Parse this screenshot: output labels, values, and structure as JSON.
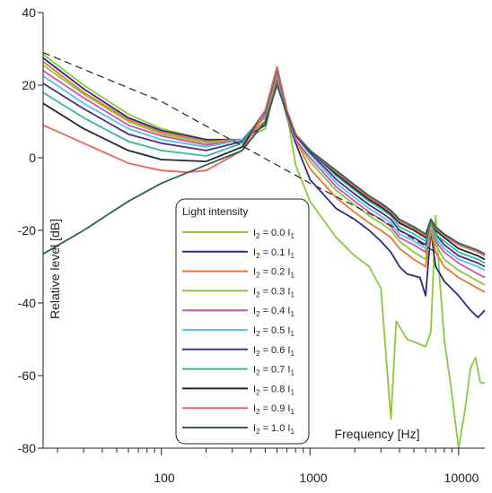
{
  "chart_data": {
    "type": "line",
    "xlabel": "Frequency [Hz]",
    "ylabel": "Relative level [dB]",
    "xscale": "log",
    "xlim": [
      16,
      15000
    ],
    "ylim": [
      -80,
      40
    ],
    "yticks": [
      "40",
      "20",
      "0",
      "-20",
      "-40",
      "-60",
      "-80"
    ],
    "xticks": [
      "100",
      "1000",
      "10000"
    ],
    "legend": {
      "title": "Light intensity",
      "placement": "center",
      "entries": [
        {
          "prefix": "I",
          "sub1": "2",
          "mid": " = 0.0 I",
          "sub2": "1"
        },
        {
          "prefix": "I",
          "sub1": "2",
          "mid": " = 0.1 I",
          "sub2": "1"
        },
        {
          "prefix": "I",
          "sub1": "2",
          "mid": " = 0.2 I",
          "sub2": "1"
        },
        {
          "prefix": "I",
          "sub1": "2",
          "mid": " = 0.3 I",
          "sub2": "1"
        },
        {
          "prefix": "I",
          "sub1": "2",
          "mid": " = 0.4 I",
          "sub2": "1"
        },
        {
          "prefix": "I",
          "sub1": "2",
          "mid": " = 0.5 I",
          "sub2": "1"
        },
        {
          "prefix": "I",
          "sub1": "2",
          "mid": " = 0.6 I",
          "sub2": "1"
        },
        {
          "prefix": "I",
          "sub1": "2",
          "mid": " = 0.7 I",
          "sub2": "1"
        },
        {
          "prefix": "I",
          "sub1": "2",
          "mid": " = 0.8 I",
          "sub2": "1"
        },
        {
          "prefix": "I",
          "sub1": "2",
          "mid": " = 0.9 I",
          "sub2": "1"
        },
        {
          "prefix": "I",
          "sub1": "2",
          "mid": " = 1.0 I",
          "sub2": "1"
        }
      ]
    },
    "series": [
      {
        "color": "#8dc63f",
        "points": [
          [
            16,
            28.5
          ],
          [
            30,
            20
          ],
          [
            60,
            12
          ],
          [
            100,
            8
          ],
          [
            200,
            5
          ],
          [
            350,
            4.8
          ],
          [
            500,
            8
          ],
          [
            600,
            21
          ],
          [
            700,
            12
          ],
          [
            800,
            -2
          ],
          [
            1000,
            -12
          ],
          [
            1500,
            -22
          ],
          [
            2000,
            -27
          ],
          [
            2500,
            -30
          ],
          [
            3000,
            -36
          ],
          [
            3500,
            -72
          ],
          [
            3800,
            -45
          ],
          [
            4500,
            -50
          ],
          [
            6000,
            -52
          ],
          [
            6500,
            -48
          ],
          [
            7000,
            -16
          ],
          [
            7500,
            -35
          ],
          [
            8000,
            -50
          ],
          [
            9000,
            -65
          ],
          [
            10000,
            -80
          ],
          [
            11000,
            -70
          ],
          [
            12000,
            -58
          ],
          [
            13000,
            -55
          ],
          [
            14000,
            -62
          ],
          [
            15000,
            -62
          ]
        ]
      },
      {
        "color": "#2e2a7e",
        "points": [
          [
            16,
            27.5
          ],
          [
            30,
            19
          ],
          [
            60,
            11
          ],
          [
            100,
            7.5
          ],
          [
            200,
            5
          ],
          [
            350,
            5
          ],
          [
            500,
            9
          ],
          [
            600,
            22
          ],
          [
            700,
            11
          ],
          [
            800,
            4
          ],
          [
            1000,
            -6
          ],
          [
            1500,
            -14
          ],
          [
            2000,
            -17
          ],
          [
            2500,
            -20
          ],
          [
            3000,
            -23
          ],
          [
            3500,
            -26
          ],
          [
            4000,
            -30
          ],
          [
            4500,
            -32
          ],
          [
            5500,
            -33
          ],
          [
            6000,
            -38
          ],
          [
            6500,
            -20
          ],
          [
            7000,
            -30
          ],
          [
            8000,
            -34
          ],
          [
            10000,
            -38
          ],
          [
            12000,
            -42
          ],
          [
            13500,
            -44
          ],
          [
            15000,
            -42
          ]
        ]
      },
      {
        "color": "#e8772e",
        "points": [
          [
            16,
            26.5
          ],
          [
            30,
            18
          ],
          [
            60,
            10.5
          ],
          [
            100,
            7
          ],
          [
            200,
            4.5
          ],
          [
            350,
            5
          ],
          [
            500,
            10
          ],
          [
            600,
            22.5
          ],
          [
            700,
            11
          ],
          [
            800,
            5
          ],
          [
            1000,
            -3
          ],
          [
            1500,
            -11
          ],
          [
            2000,
            -15
          ],
          [
            2500,
            -18
          ],
          [
            3000,
            -20
          ],
          [
            3500,
            -22
          ],
          [
            4000,
            -25
          ],
          [
            5000,
            -28
          ],
          [
            6000,
            -30
          ],
          [
            6500,
            -20
          ],
          [
            7000,
            -26
          ],
          [
            8000,
            -30
          ],
          [
            10000,
            -33
          ],
          [
            13500,
            -36
          ],
          [
            15000,
            -37
          ]
        ]
      },
      {
        "color": "#8dc63f",
        "points": [
          [
            16,
            25.5
          ],
          [
            30,
            17.5
          ],
          [
            60,
            10
          ],
          [
            100,
            6.5
          ],
          [
            200,
            4
          ],
          [
            350,
            5
          ],
          [
            500,
            11
          ],
          [
            600,
            23
          ],
          [
            700,
            11
          ],
          [
            800,
            5
          ],
          [
            1000,
            -1
          ],
          [
            1500,
            -9
          ],
          [
            2000,
            -13
          ],
          [
            2500,
            -16
          ],
          [
            3000,
            -18
          ],
          [
            3500,
            -20
          ],
          [
            4000,
            -23
          ],
          [
            5000,
            -26
          ],
          [
            6000,
            -28
          ],
          [
            6500,
            -18
          ],
          [
            7000,
            -24
          ],
          [
            8000,
            -28
          ],
          [
            10000,
            -31
          ],
          [
            13500,
            -34
          ],
          [
            15000,
            -35
          ]
        ]
      },
      {
        "color": "#d44fb0",
        "points": [
          [
            16,
            24
          ],
          [
            30,
            16.5
          ],
          [
            60,
            9
          ],
          [
            100,
            6
          ],
          [
            200,
            3.5
          ],
          [
            350,
            5
          ],
          [
            500,
            11.5
          ],
          [
            600,
            23.5
          ],
          [
            700,
            11.5
          ],
          [
            800,
            5
          ],
          [
            1000,
            0
          ],
          [
            1500,
            -8
          ],
          [
            2000,
            -12
          ],
          [
            2500,
            -15
          ],
          [
            3000,
            -17
          ],
          [
            3500,
            -19
          ],
          [
            4000,
            -22
          ],
          [
            5000,
            -24
          ],
          [
            6000,
            -26
          ],
          [
            6500,
            -17
          ],
          [
            7000,
            -23
          ],
          [
            8000,
            -26
          ],
          [
            10000,
            -29
          ],
          [
            13500,
            -32
          ],
          [
            15000,
            -33
          ]
        ]
      },
      {
        "color": "#55c0e8",
        "points": [
          [
            16,
            22.5
          ],
          [
            30,
            15
          ],
          [
            60,
            8
          ],
          [
            100,
            5
          ],
          [
            200,
            3
          ],
          [
            350,
            5
          ],
          [
            500,
            12
          ],
          [
            600,
            24
          ],
          [
            700,
            12
          ],
          [
            800,
            6
          ],
          [
            1000,
            1
          ],
          [
            1500,
            -7
          ],
          [
            2000,
            -11
          ],
          [
            2500,
            -14
          ],
          [
            3000,
            -16
          ],
          [
            3500,
            -18
          ],
          [
            4000,
            -21
          ],
          [
            5000,
            -23
          ],
          [
            6000,
            -25
          ],
          [
            6500,
            -17
          ],
          [
            7000,
            -22
          ],
          [
            8000,
            -25
          ],
          [
            10000,
            -28
          ],
          [
            13500,
            -30
          ],
          [
            15000,
            -31
          ]
        ]
      },
      {
        "color": "#4b2e83",
        "points": [
          [
            16,
            20.5
          ],
          [
            30,
            13.5
          ],
          [
            60,
            6.5
          ],
          [
            100,
            4
          ],
          [
            200,
            2
          ],
          [
            350,
            4.5
          ],
          [
            500,
            12.5
          ],
          [
            600,
            24.5
          ],
          [
            700,
            12.5
          ],
          [
            800,
            6
          ],
          [
            1000,
            1.5
          ],
          [
            1500,
            -6
          ],
          [
            2000,
            -10
          ],
          [
            2500,
            -13
          ],
          [
            3000,
            -15
          ],
          [
            3500,
            -17
          ],
          [
            4000,
            -20
          ],
          [
            5000,
            -22
          ],
          [
            6000,
            -24
          ],
          [
            6500,
            -17
          ],
          [
            7000,
            -21
          ],
          [
            8000,
            -24
          ],
          [
            10000,
            -27
          ],
          [
            13500,
            -29
          ],
          [
            15000,
            -30
          ]
        ]
      },
      {
        "color": "#3ab7a0",
        "points": [
          [
            16,
            18
          ],
          [
            30,
            11
          ],
          [
            60,
            4.5
          ],
          [
            100,
            2
          ],
          [
            200,
            0.5
          ],
          [
            350,
            4
          ],
          [
            500,
            13
          ],
          [
            600,
            25
          ],
          [
            700,
            13
          ],
          [
            800,
            6.5
          ],
          [
            1000,
            2
          ],
          [
            1500,
            -5
          ],
          [
            2000,
            -9
          ],
          [
            2500,
            -12
          ],
          [
            3000,
            -14
          ],
          [
            3500,
            -16
          ],
          [
            4000,
            -19
          ],
          [
            5000,
            -21
          ],
          [
            6000,
            -23
          ],
          [
            6500,
            -17
          ],
          [
            7000,
            -21
          ],
          [
            8000,
            -23
          ],
          [
            10000,
            -26
          ],
          [
            13500,
            -28
          ],
          [
            15000,
            -29
          ]
        ]
      },
      {
        "color": "#1f2a2e",
        "points": [
          [
            16,
            15
          ],
          [
            30,
            8
          ],
          [
            60,
            2
          ],
          [
            100,
            -0.5
          ],
          [
            200,
            -1
          ],
          [
            350,
            3
          ],
          [
            500,
            13
          ],
          [
            600,
            25
          ],
          [
            700,
            13
          ],
          [
            800,
            6.5
          ],
          [
            1000,
            2
          ],
          [
            1500,
            -4.5
          ],
          [
            2000,
            -8.5
          ],
          [
            2500,
            -11.5
          ],
          [
            3000,
            -13.5
          ],
          [
            3500,
            -15.5
          ],
          [
            4000,
            -18
          ],
          [
            5000,
            -20
          ],
          [
            6000,
            -22
          ],
          [
            6500,
            -17
          ],
          [
            7000,
            -20
          ],
          [
            8000,
            -22
          ],
          [
            10000,
            -25
          ],
          [
            13500,
            -27
          ],
          [
            15000,
            -28
          ]
        ]
      },
      {
        "color": "#e8655a",
        "points": [
          [
            16,
            9
          ],
          [
            30,
            4
          ],
          [
            60,
            -1.5
          ],
          [
            100,
            -3.5
          ],
          [
            150,
            -4
          ],
          [
            200,
            -3.5
          ],
          [
            350,
            2
          ],
          [
            500,
            13
          ],
          [
            600,
            25
          ],
          [
            700,
            13
          ],
          [
            800,
            6.5
          ],
          [
            1000,
            2
          ],
          [
            1500,
            -4
          ],
          [
            2000,
            -8
          ],
          [
            2500,
            -11
          ],
          [
            3000,
            -13
          ],
          [
            3500,
            -15
          ],
          [
            4000,
            -17.5
          ],
          [
            5000,
            -19.5
          ],
          [
            6000,
            -21.5
          ],
          [
            6500,
            -17
          ],
          [
            7000,
            -19.5
          ],
          [
            8000,
            -21.5
          ],
          [
            10000,
            -24
          ],
          [
            13500,
            -26
          ],
          [
            15000,
            -27
          ]
        ]
      },
      {
        "color": "#2f5e5a",
        "points": [
          [
            16,
            -26.5
          ],
          [
            30,
            -20
          ],
          [
            60,
            -12
          ],
          [
            100,
            -7
          ],
          [
            200,
            -2
          ],
          [
            350,
            2
          ],
          [
            500,
            10
          ],
          [
            600,
            20
          ],
          [
            700,
            12
          ],
          [
            800,
            6
          ],
          [
            1000,
            2
          ],
          [
            1500,
            -3.5
          ],
          [
            2000,
            -7.5
          ],
          [
            2500,
            -10.5
          ],
          [
            3000,
            -12.5
          ],
          [
            3500,
            -14.5
          ],
          [
            4000,
            -17
          ],
          [
            5000,
            -19
          ],
          [
            6000,
            -21
          ],
          [
            6500,
            -17
          ],
          [
            7000,
            -19
          ],
          [
            8000,
            -21
          ],
          [
            10000,
            -23.5
          ],
          [
            13500,
            -25.5
          ],
          [
            15000,
            -26.5
          ]
        ]
      }
    ],
    "asymptote": {
      "style": "dashed",
      "color": "#222222",
      "points": [
        [
          16,
          29
        ],
        [
          100,
          15.5
        ],
        [
          1000,
          -7
        ],
        [
          3000,
          -17
        ],
        [
          7000,
          -26
        ]
      ]
    }
  }
}
